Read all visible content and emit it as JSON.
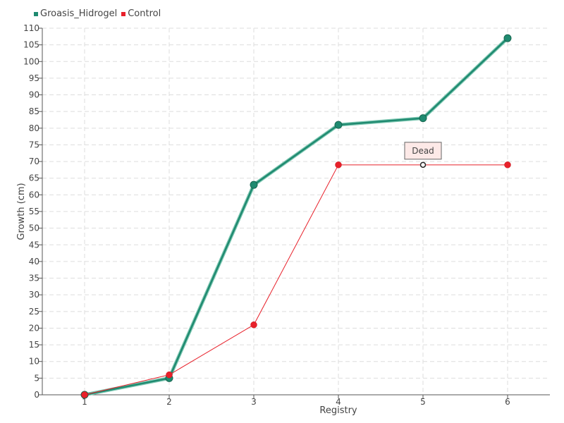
{
  "chart_data": {
    "type": "line",
    "xlabel": "Registry",
    "ylabel": "Growth (cm)",
    "categories": [
      "1",
      "2",
      "3",
      "4",
      "5",
      "6"
    ],
    "ylim": [
      0,
      110
    ],
    "ytick_step": 5,
    "grid": true,
    "legend_position": "top-left",
    "series": [
      {
        "name": "Groasis_Hidrogel",
        "color": "#1f8a70",
        "values": [
          0,
          5,
          63,
          81,
          83,
          107
        ]
      },
      {
        "name": "Control",
        "color": "#e8202a",
        "values": [
          0,
          6,
          21,
          69,
          69,
          69
        ]
      }
    ],
    "annotations": [
      {
        "text": "Dead",
        "series": "Control",
        "category": "5",
        "value": 69
      }
    ]
  }
}
